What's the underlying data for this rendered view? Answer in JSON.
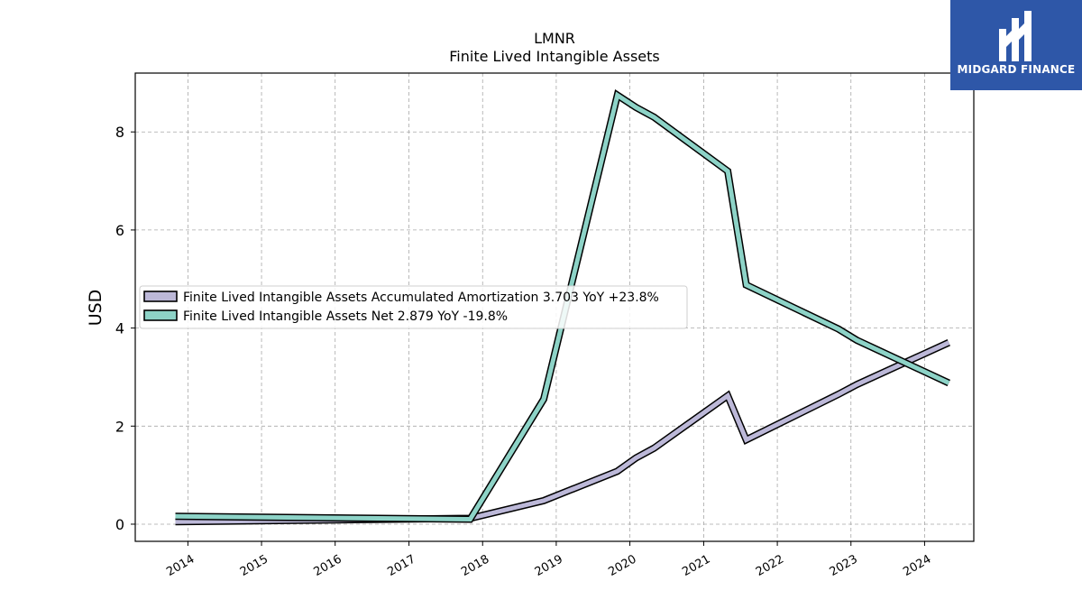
{
  "chart_data": {
    "type": "line",
    "title": "LMNR",
    "subtitle": "Finite Lived Intangible Assets",
    "ylabel": "USD",
    "xlabel": "",
    "ylim": [
      -0.35,
      9.2
    ],
    "yticks": [
      0,
      2,
      4,
      6,
      8
    ],
    "xticks": [
      "2014",
      "2015",
      "2016",
      "2017",
      "2018",
      "2019",
      "2020",
      "2021",
      "2022",
      "2023",
      "2024"
    ],
    "xlim": [
      "2013-04-15",
      "2024-09-01"
    ],
    "grid": true,
    "legend_position": "center-left",
    "series": [
      {
        "name": "Finite Lived Intangible Assets Accumulated Amortization",
        "legend_label": "Finite Lived Intangible Assets Accumulated Amortization  3.703 YoY +23.8%",
        "color": "#bcb8d8",
        "points": [
          [
            "2013-10-31",
            0.05
          ],
          [
            "2017-10-31",
            0.12
          ],
          [
            "2018-10-31",
            0.48
          ],
          [
            "2019-10-31",
            1.08
          ],
          [
            "2020-01-31",
            1.35
          ],
          [
            "2020-04-30",
            1.55
          ],
          [
            "2021-04-30",
            2.62
          ],
          [
            "2021-07-31",
            1.72
          ],
          [
            "2022-10-31",
            2.65
          ],
          [
            "2023-01-31",
            2.85
          ],
          [
            "2024-04-30",
            3.703
          ]
        ]
      },
      {
        "name": "Finite Lived Intangible Assets Net",
        "legend_label": "Finite Lived Intangible Assets Net  2.879 YoY -19.8%",
        "color": "#8dd3c7",
        "points": [
          [
            "2013-10-31",
            0.16
          ],
          [
            "2017-10-31",
            0.1
          ],
          [
            "2018-10-31",
            2.55
          ],
          [
            "2019-10-31",
            8.75
          ],
          [
            "2020-01-31",
            8.5
          ],
          [
            "2020-04-30",
            8.3
          ],
          [
            "2021-04-30",
            7.2
          ],
          [
            "2021-07-31",
            4.88
          ],
          [
            "2022-10-31",
            3.98
          ],
          [
            "2023-01-31",
            3.75
          ],
          [
            "2024-04-30",
            2.879
          ]
        ]
      }
    ]
  },
  "logo": {
    "text": "MIDGARD FINANCE",
    "icon": "midgard-logo-icon",
    "background": "#2e57a8"
  }
}
